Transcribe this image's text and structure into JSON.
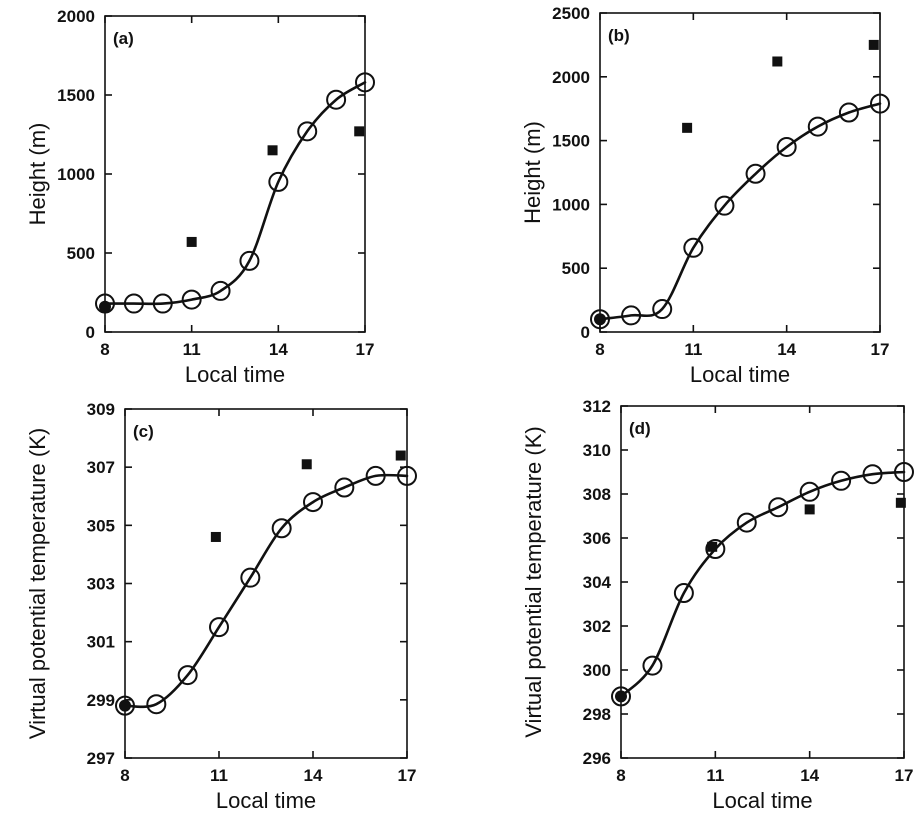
{
  "chart_data": [
    {
      "id": "a",
      "type": "line",
      "panel_label": "(a)",
      "xlabel": "Local time",
      "ylabel": "Height (m)",
      "xlim": [
        8,
        17
      ],
      "ylim": [
        0,
        2000
      ],
      "xticks": [
        8,
        11,
        14,
        17
      ],
      "yticks": [
        0,
        500,
        1000,
        1500,
        2000
      ],
      "grid": false,
      "series": [
        {
          "marker": "open-circle-with-line",
          "x": [
            8,
            9,
            10,
            11,
            12,
            13,
            14,
            15,
            16,
            17
          ],
          "y": [
            180,
            180,
            180,
            205,
            260,
            450,
            950,
            1270,
            1470,
            1580
          ]
        },
        {
          "marker": "filled-square",
          "x": [
            8,
            11,
            13.8,
            16.8
          ],
          "y": [
            160,
            570,
            1150,
            1270
          ]
        }
      ]
    },
    {
      "id": "b",
      "type": "line",
      "panel_label": "(b)",
      "xlabel": "Local time",
      "ylabel": "Height (m)",
      "xlim": [
        8,
        17
      ],
      "ylim": [
        0,
        2500
      ],
      "xticks": [
        8,
        11,
        14,
        17
      ],
      "yticks": [
        0,
        500,
        1000,
        1500,
        2000,
        2500
      ],
      "grid": false,
      "series": [
        {
          "marker": "open-circle-with-line",
          "x": [
            8,
            9,
            10,
            11,
            12,
            13,
            14,
            15,
            16,
            17
          ],
          "y": [
            100,
            130,
            180,
            660,
            990,
            1240,
            1450,
            1610,
            1720,
            1790
          ]
        },
        {
          "marker": "filled-square",
          "x": [
            8,
            10.8,
            13.7,
            16.8
          ],
          "y": [
            100,
            1600,
            2120,
            2250
          ]
        }
      ]
    },
    {
      "id": "c",
      "type": "line",
      "panel_label": "(c)",
      "xlabel": "Local time",
      "ylabel": "Virtual potential temperature (K)",
      "xlim": [
        8,
        17
      ],
      "ylim": [
        297,
        309
      ],
      "xticks": [
        8,
        11,
        14,
        17
      ],
      "yticks": [
        297,
        299,
        301,
        303,
        305,
        307,
        309
      ],
      "grid": false,
      "series": [
        {
          "marker": "open-circle-with-line",
          "x": [
            8,
            9,
            10,
            11,
            12,
            13,
            14,
            15,
            16,
            17
          ],
          "y": [
            298.8,
            298.85,
            299.85,
            301.5,
            303.2,
            304.9,
            305.8,
            306.3,
            306.7,
            306.7
          ]
        },
        {
          "marker": "filled-square",
          "x": [
            8,
            10.9,
            13.8,
            16.8
          ],
          "y": [
            298.8,
            304.6,
            307.1,
            307.4
          ]
        }
      ]
    },
    {
      "id": "d",
      "type": "line",
      "panel_label": "(d)",
      "xlabel": "Local time",
      "ylabel": "Virtual potential temperature (K)",
      "xlim": [
        8,
        17
      ],
      "ylim": [
        296,
        312
      ],
      "xticks": [
        8,
        11,
        14,
        17
      ],
      "yticks": [
        296,
        298,
        300,
        302,
        304,
        306,
        308,
        310,
        312
      ],
      "grid": false,
      "series": [
        {
          "marker": "open-circle-with-line",
          "x": [
            8,
            9,
            10,
            11,
            12,
            13,
            14,
            15,
            16,
            17
          ],
          "y": [
            298.8,
            300.2,
            303.5,
            305.5,
            306.7,
            307.4,
            308.1,
            308.6,
            308.9,
            309.0
          ]
        },
        {
          "marker": "filled-square",
          "x": [
            8,
            10.9,
            14,
            16.9
          ],
          "y": [
            298.8,
            305.6,
            307.3,
            307.6
          ]
        }
      ]
    }
  ]
}
